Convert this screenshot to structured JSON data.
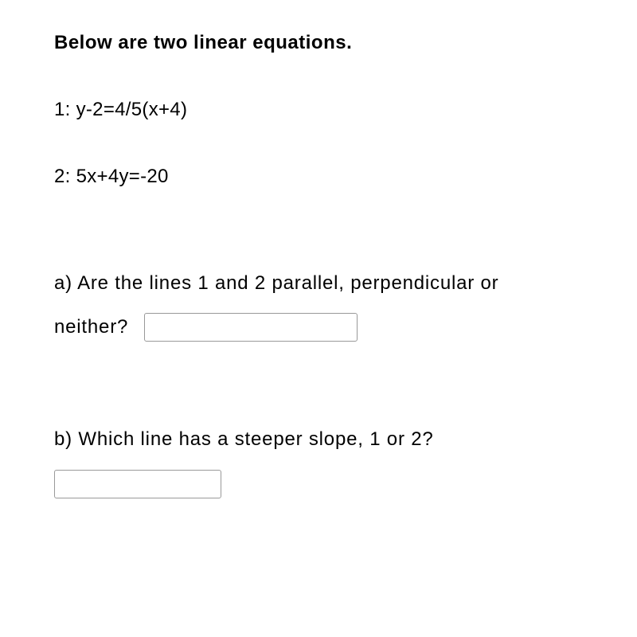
{
  "heading": "Below are two linear equations.",
  "equation1": "1: y-2=4/5(x+4)",
  "equation2": "2: 5x+4y=-20",
  "questionA": {
    "line1": "a) Are the lines 1 and 2 parallel, perpendicular or",
    "line2": "neither?"
  },
  "questionB": "b) Which line has a steeper slope, 1 or 2?",
  "inputA": {
    "value": "",
    "placeholder": ""
  },
  "inputB": {
    "value": "",
    "placeholder": ""
  },
  "colors": {
    "background": "#ffffff",
    "text": "#000000",
    "input_border": "#999999"
  },
  "typography": {
    "font_family": "Helvetica, Arial, sans-serif",
    "heading_fontsize": 24,
    "heading_weight": "bold",
    "body_fontsize": 24,
    "body_weight": "normal"
  }
}
